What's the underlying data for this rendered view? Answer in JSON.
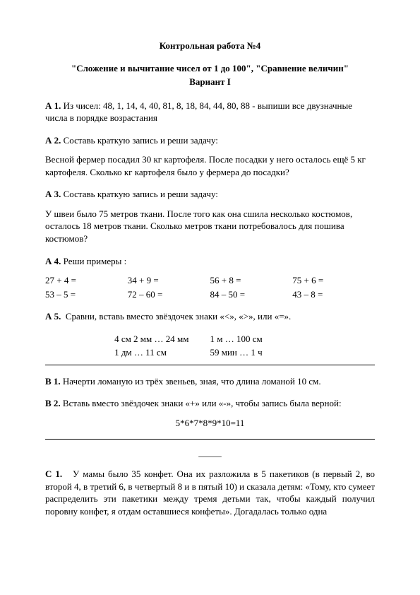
{
  "header": {
    "title": "Контрольная работа №4",
    "subtitle": "\"Сложение и вычитание чисел от 1 до 100\", \"Сравнение величин\"",
    "variant": "Вариант I"
  },
  "a1": {
    "label": "А 1.",
    "text": "Из чисел: 48, 1, 14, 4, 40, 81, 8, 18, 84, 44, 80, 88 - выпиши все двузначные числа в порядке   возрастания"
  },
  "a2": {
    "label": "А 2.",
    "intro": "Составь краткую запись и реши задачу:",
    "text": "Весной фермер посадил 30 кг картофеля. После посадки у него осталось ещё 5 кг картофеля. Сколько кг картофеля было у фермера до посадки?"
  },
  "a3": {
    "label": "А 3.",
    "intro": "Составь краткую запись и реши задачу:",
    "text": "У швеи было 75 метров ткани. После того как она сшила несколько костюмов, осталось 18 метров ткани. Сколько метров ткани потребовалось для пошива костюмов?"
  },
  "a4": {
    "label": "А 4.",
    "intro": "Реши примеры :",
    "row1": [
      "27 + 4 =",
      "34 + 9 =",
      "56 + 8 =",
      "75 + 6 ="
    ],
    "row2": [
      "53 – 5 =",
      "72 – 60 =",
      "84 – 50 =",
      "43 – 8 ="
    ]
  },
  "a5": {
    "label": "А 5.",
    "intro": "Сравни,   вставь вместо звёздочек знаки «<»,  «>», или «=».",
    "rows": [
      [
        "4 см 2 мм … 24 мм",
        "1 м … 100 см"
      ],
      [
        "1 дм … 11 см",
        "59 мин … 1 ч"
      ]
    ]
  },
  "b1": {
    "label": "В 1.",
    "text": "Начерти ломаную  из трёх звеньев, зная, что  длина ломаной 10 см."
  },
  "b2": {
    "label": "В 2.",
    "intro": "Вставь вместо звёздочек знаки «+» или «-», чтобы запись была верной:",
    "expr": "5*6*7*8*9*10=11"
  },
  "c1": {
    "label": "С 1.",
    "text": "У мамы было 35 конфет. Она их разложила в 5 пакетиков (в первый 2, во второй 4, в третий 6, в четвертый 8 и в пятый 10) и сказала детям: «Тому, кто сумеет распределить эти пакетики между тремя детьми так, чтобы каждый получил поровну конфет, я отдам оставшиеся конфеты». Догадалась только одна"
  }
}
